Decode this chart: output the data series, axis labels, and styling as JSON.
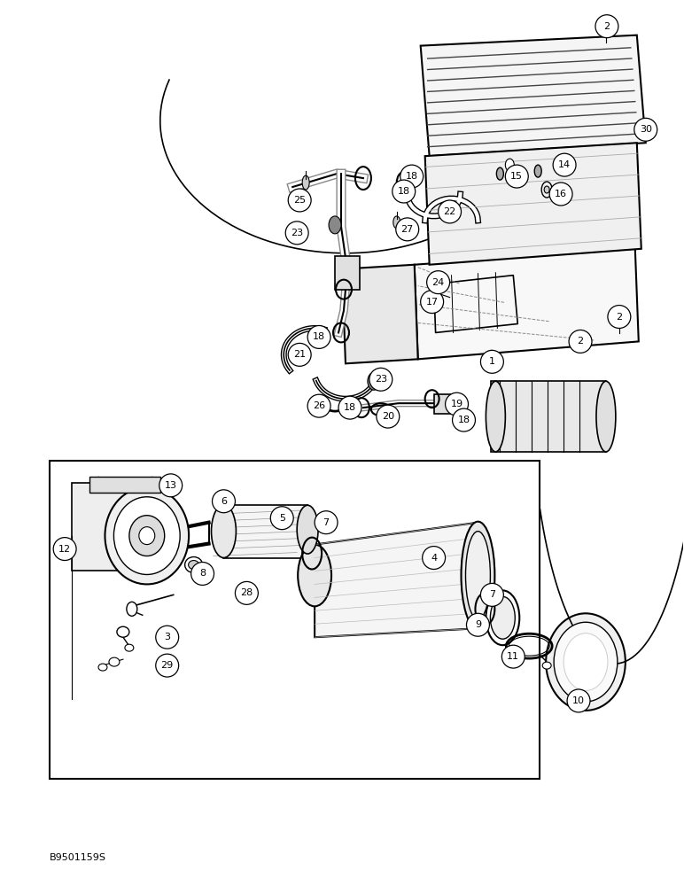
{
  "background_color": "#ffffff",
  "figure_width": 7.72,
  "figure_height": 10.0,
  "watermark": "B9501159S",
  "line_color": "#000000",
  "circle_r": 0.022
}
